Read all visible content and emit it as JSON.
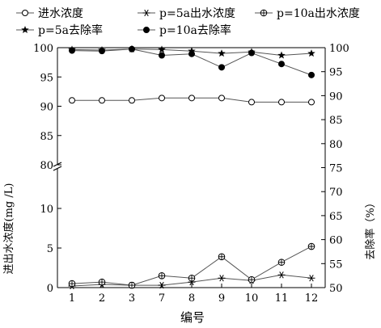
{
  "chart_data": {
    "type": "line",
    "title": "",
    "xlabel": "编号",
    "ylabel_left": "进出水浓度(mg /L)",
    "ylabel_right": "去除率（%）",
    "categories": [
      "1",
      "2",
      "3",
      "7",
      "8",
      "9",
      "10",
      "11",
      "12"
    ],
    "left_axis": {
      "lower_segment": {
        "range": [
          0,
          15
        ],
        "ticks": [
          "0",
          "5",
          "10"
        ]
      },
      "upper_segment": {
        "range": [
          80,
          100
        ],
        "ticks": [
          "80",
          "85",
          "90",
          "95",
          "100"
        ]
      },
      "break_between": true
    },
    "right_axis": {
      "range": [
        50,
        100
      ],
      "ticks": [
        "50",
        "55",
        "60",
        "65",
        "70",
        "75",
        "80",
        "85",
        "90",
        "95",
        "100"
      ]
    },
    "series": [
      {
        "name": "进水浓度",
        "axis": "left",
        "marker": "open-circle",
        "values": [
          91.0,
          91.0,
          91.0,
          91.4,
          91.4,
          91.4,
          90.7,
          90.7,
          90.7
        ]
      },
      {
        "name": "p=5a出水浓度",
        "axis": "left",
        "marker": "asterisk",
        "values": [
          0.2,
          0.4,
          0.3,
          0.3,
          0.7,
          1.2,
          0.9,
          1.6,
          1.2
        ]
      },
      {
        "name": "p=10a出水浓度",
        "axis": "left",
        "marker": "crossed-circle",
        "values": [
          0.5,
          0.7,
          0.3,
          1.5,
          1.2,
          3.9,
          1.0,
          3.2,
          5.2
        ]
      },
      {
        "name": "p=5a去除率",
        "axis": "right",
        "marker": "filled-star",
        "values": [
          99.6,
          99.5,
          99.7,
          99.6,
          99.3,
          98.8,
          99.1,
          98.4,
          98.8
        ]
      },
      {
        "name": "p=10a去除率",
        "axis": "right",
        "marker": "filled-circle",
        "values": [
          99.4,
          99.3,
          99.7,
          98.4,
          98.7,
          95.9,
          98.9,
          96.6,
          94.3
        ]
      }
    ],
    "legend_position": "top",
    "grid": false
  }
}
